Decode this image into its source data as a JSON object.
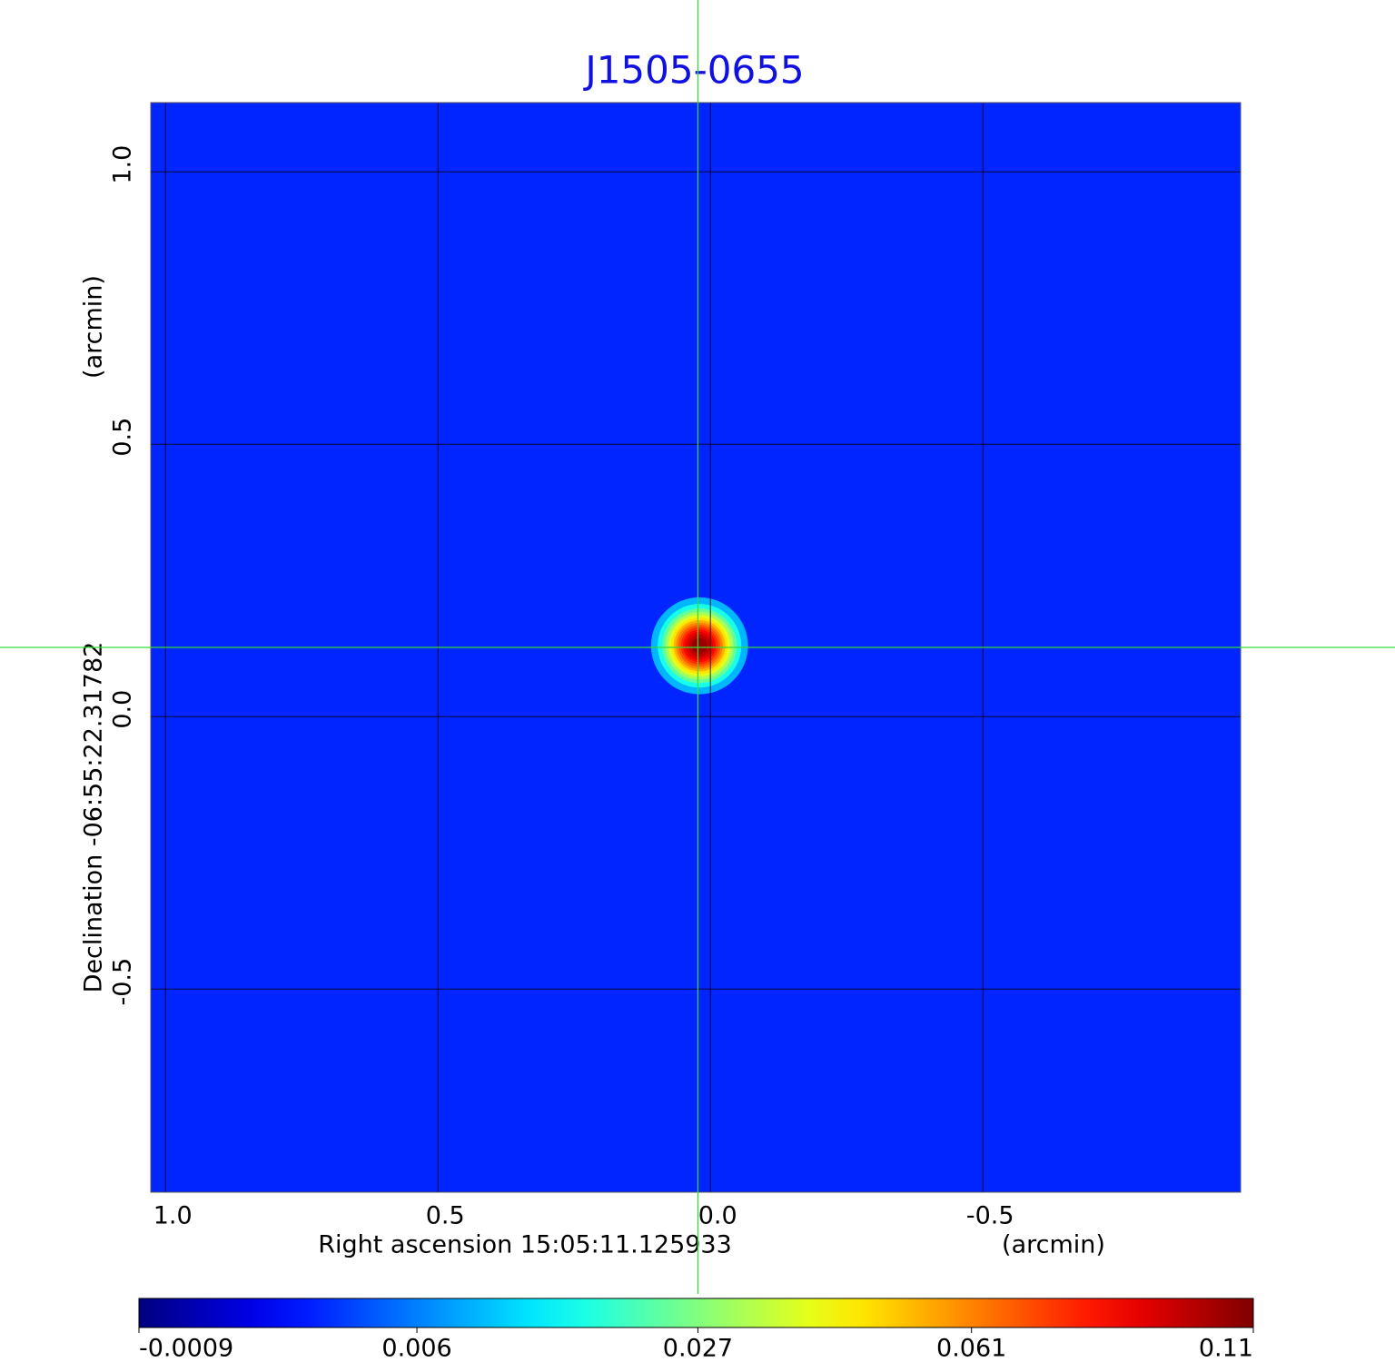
{
  "chart_data": {
    "type": "image",
    "title": "J1505-0655",
    "x_label": "Right ascension  15:05:11.125933",
    "x_unit": "(arcmin)",
    "y_label": "Declination  -06:55:22.31782",
    "y_unit": "(arcmin)",
    "xlim": [
      1.027,
      -0.973
    ],
    "ylim": [
      -0.873,
      1.127
    ],
    "xticks": [
      {
        "value": 1,
        "label": "1.0"
      },
      {
        "value": 0.5,
        "label": "0.5"
      },
      {
        "value": 0,
        "label": "0.0"
      },
      {
        "value": -0.5,
        "label": "-0.5"
      }
    ],
    "yticks": [
      {
        "value": 1,
        "label": "1.0"
      },
      {
        "value": 0.5,
        "label": "0.5"
      },
      {
        "value": 0,
        "label": "0.0"
      },
      {
        "value": -0.5,
        "label": "-0.5"
      }
    ],
    "grid": true,
    "colormap": "jet",
    "color_scale": "sqrt",
    "clim": [
      -0.0009,
      0.11
    ],
    "cticks": [
      -0.0009,
      0.006,
      0.027,
      0.061,
      0.11
    ],
    "background": 0.002,
    "source": {
      "x": 0.02,
      "y": 0.13,
      "peak": 0.11,
      "fwhm": 0.09
    },
    "crosshair": {
      "x": 0.023,
      "y": 0.127
    }
  }
}
